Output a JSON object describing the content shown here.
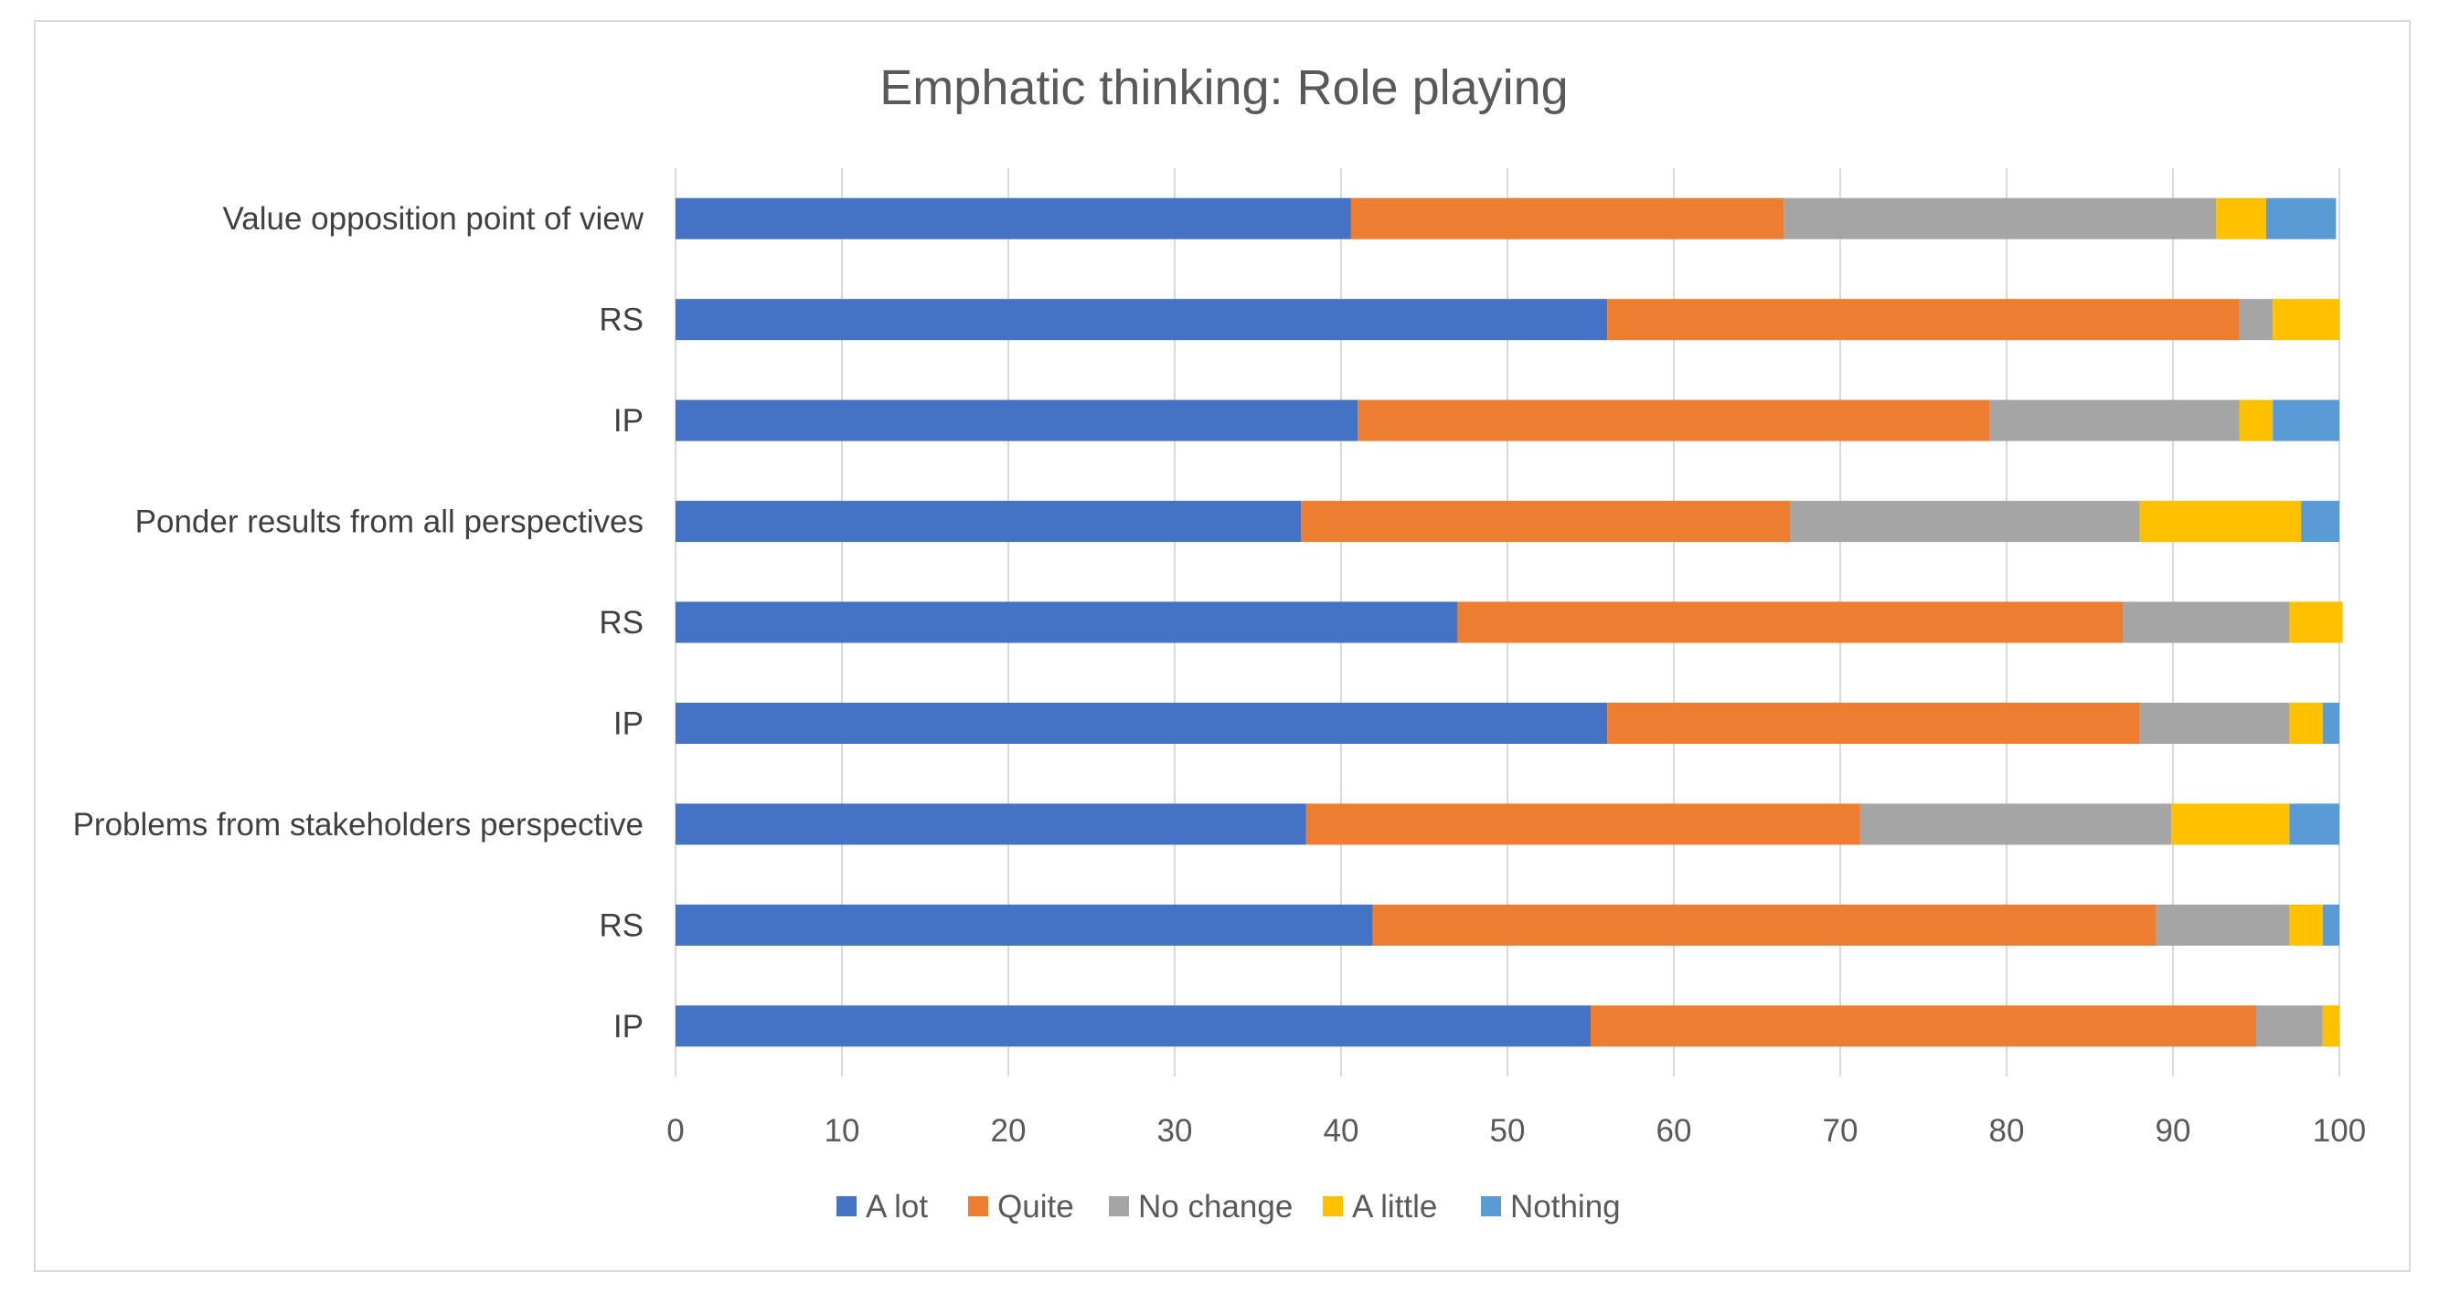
{
  "chart_data": {
    "type": "bar",
    "orientation": "horizontal",
    "stacked": true,
    "title": "Emphatic thinking: Role playing",
    "xlabel": "",
    "ylabel": "",
    "xlim": [
      0,
      100
    ],
    "x_ticks": [
      0,
      10,
      20,
      30,
      40,
      50,
      60,
      70,
      80,
      90,
      100
    ],
    "grid": true,
    "legend_position": "bottom",
    "categories": [
      "Value opposition point of view",
      "RS",
      "IP",
      "Ponder results from all perspectives",
      "RS",
      "IP",
      "Problems from stakeholders perspective",
      "RS",
      "IP"
    ],
    "series": [
      {
        "name": "A lot",
        "color": "#4472c4",
        "values": [
          40.6,
          56.0,
          41.0,
          37.6,
          47.0,
          56.0,
          37.9,
          41.9,
          55.0
        ]
      },
      {
        "name": "Quite",
        "color": "#ed7d31",
        "values": [
          26.0,
          38.0,
          38.0,
          29.4,
          40.0,
          32.0,
          33.3,
          47.1,
          40.0
        ]
      },
      {
        "name": "No change",
        "color": "#a5a5a5",
        "values": [
          26.0,
          2.0,
          15.0,
          21.0,
          10.0,
          9.0,
          18.7,
          8.0,
          4.0
        ]
      },
      {
        "name": "A little",
        "color": "#ffc000",
        "values": [
          3.0,
          4.0,
          2.0,
          9.7,
          3.2,
          2.0,
          7.1,
          2.0,
          1.0
        ]
      },
      {
        "name": "Nothing",
        "color": "#5b9bd5",
        "values": [
          4.2,
          0.0,
          4.0,
          2.3,
          0.0,
          1.0,
          3.0,
          1.0,
          0.0
        ]
      }
    ]
  }
}
